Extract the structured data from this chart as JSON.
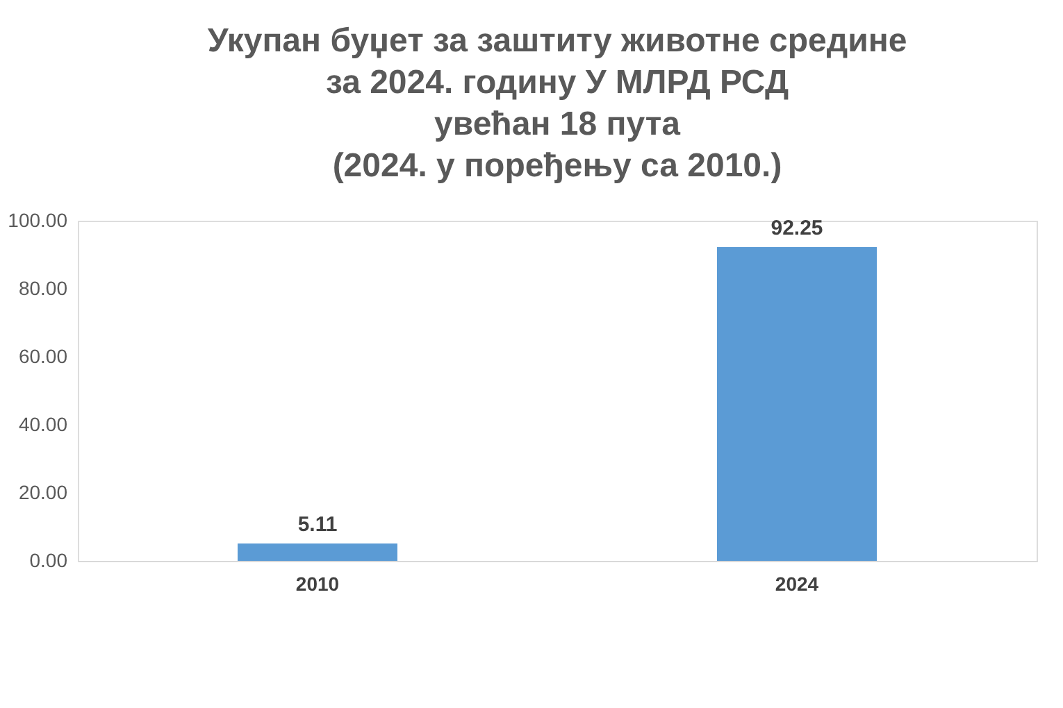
{
  "chart_data": {
    "type": "bar",
    "title": "Укупан буџет за заштиту животне средине\nза 2024. годину У МЛРД РСД\nувећан 18 пута\n(2024. у поређењу са 2010.)",
    "categories": [
      "2010",
      "2024"
    ],
    "values": [
      5.11,
      92.25
    ],
    "color": "#5b9bd5",
    "data_labels": true,
    "ylim": [
      0,
      100
    ],
    "yticks": [
      {
        "value": 0,
        "label": "0.00"
      },
      {
        "value": 20,
        "label": "20.00"
      },
      {
        "value": 40,
        "label": "40.00"
      },
      {
        "value": 60,
        "label": "60.00"
      },
      {
        "value": 80,
        "label": "80.00"
      },
      {
        "value": 100,
        "label": "100.00"
      }
    ],
    "grid": false
  }
}
